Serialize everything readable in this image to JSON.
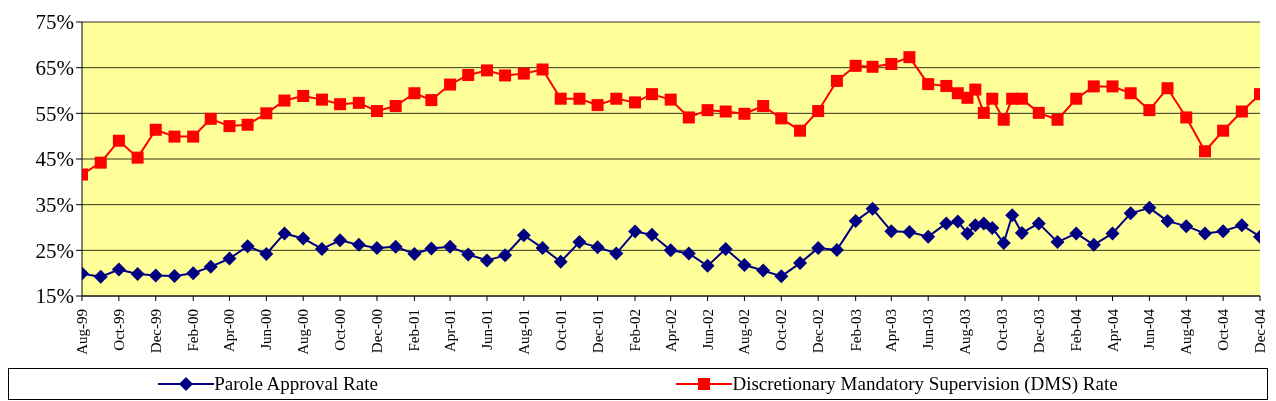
{
  "chart_data": {
    "type": "line",
    "x": [
      "1999-08",
      "1999-09",
      "1999-10",
      "1999-11",
      "1999-12",
      "2000-01",
      "2000-02",
      "2000-03",
      "2000-04",
      "2000-05",
      "2000-06",
      "2000-07",
      "2000-08",
      "2000-09",
      "2000-10",
      "2000-11",
      "2000-12",
      "2001-01",
      "2001-02",
      "2001-03",
      "2001-04",
      "2001-05",
      "2001-06",
      "2001-07",
      "2001-08",
      "2001-09",
      "2001-10",
      "2001-11",
      "2001-12",
      "2002-01",
      "2002-02",
      "2002-03",
      "2002-04",
      "2002-05",
      "2002-06",
      "2002-07",
      "2002-08",
      "2002-09",
      "2002-10",
      "2002-11",
      "2002-12",
      "2003-01",
      "2003-02",
      "2003-03",
      "2003-04",
      "2003-05",
      "2003-06",
      "2003-07",
      "2003-07-20",
      "2003-08-05",
      "2003-08-18",
      "2003-09-01",
      "2003-09-15",
      "2003-10-04",
      "2003-10-18",
      "2003-11-03",
      "2003-12",
      "2004-01",
      "2004-02",
      "2004-03",
      "2004-04",
      "2004-05",
      "2004-06",
      "2004-07",
      "2004-08",
      "2004-09",
      "2004-10",
      "2004-11",
      "2004-12"
    ],
    "series": [
      {
        "name": "Parole Approval Rate",
        "color": "#000080",
        "marker": "diamond",
        "values": [
          19.9,
          19.2,
          20.8,
          19.8,
          19.5,
          19.4,
          20.0,
          21.4,
          23.2,
          25.9,
          24.2,
          28.7,
          27.6,
          25.3,
          27.2,
          26.2,
          25.5,
          25.8,
          24.2,
          25.4,
          25.8,
          24.1,
          22.8,
          23.9,
          28.3,
          25.5,
          22.5,
          26.8,
          25.7,
          24.3,
          29.1,
          28.4,
          25.0,
          24.3,
          21.6,
          25.3,
          21.8,
          20.6,
          19.3,
          22.2,
          25.5,
          25.1,
          31.4,
          34.1,
          29.2,
          29.0,
          28.0,
          30.9,
          31.3,
          28.7,
          30.5,
          30.9,
          29.9,
          26.6,
          32.7,
          28.8,
          30.9,
          26.8,
          28.7,
          26.2,
          28.7,
          33.1,
          34.3,
          31.4,
          30.3,
          28.7,
          29.2,
          30.5,
          28.0
        ]
      },
      {
        "name": "Discretionary Mandatory Supervision (DMS) Rate",
        "color": "#ff0000",
        "marker": "square",
        "values": [
          41.6,
          44.2,
          49.0,
          45.3,
          51.4,
          49.9,
          49.9,
          53.8,
          52.2,
          52.5,
          55.0,
          57.8,
          58.8,
          58.0,
          57.0,
          57.3,
          55.5,
          56.6,
          59.4,
          57.9,
          61.3,
          63.4,
          64.4,
          63.3,
          63.7,
          64.6,
          58.2,
          58.2,
          56.8,
          58.2,
          57.4,
          59.2,
          58.0,
          54.1,
          55.7,
          55.4,
          54.9,
          56.6,
          53.9,
          51.2,
          55.5,
          62.1,
          65.4,
          65.2,
          65.8,
          67.3,
          61.4,
          61.0,
          59.4,
          58.4,
          60.2,
          55.1,
          58.2,
          53.6,
          58.2,
          58.2,
          55.1,
          53.6,
          58.2,
          60.9,
          60.9,
          59.4,
          55.7,
          60.5,
          54.1,
          46.7,
          51.2,
          55.4,
          59.2
        ]
      }
    ],
    "xlim": [
      "1999-08",
      "2004-12"
    ],
    "xticks": [
      {
        "value": "1999-08",
        "label": "Aug-99"
      },
      {
        "value": "1999-10",
        "label": "Oct-99"
      },
      {
        "value": "1999-12",
        "label": "Dec-99"
      },
      {
        "value": "2000-02",
        "label": "Feb-00"
      },
      {
        "value": "2000-04",
        "label": "Apr-00"
      },
      {
        "value": "2000-06",
        "label": "Jun-00"
      },
      {
        "value": "2000-08",
        "label": "Aug-00"
      },
      {
        "value": "2000-10",
        "label": "Oct-00"
      },
      {
        "value": "2000-12",
        "label": "Dec-00"
      },
      {
        "value": "2001-02",
        "label": "Feb-01"
      },
      {
        "value": "2001-04",
        "label": "Apr-01"
      },
      {
        "value": "2001-06",
        "label": "Jun-01"
      },
      {
        "value": "2001-08",
        "label": "Aug-01"
      },
      {
        "value": "2001-10",
        "label": "Oct-01"
      },
      {
        "value": "2001-12",
        "label": "Dec-01"
      },
      {
        "value": "2002-02",
        "label": "Feb-02"
      },
      {
        "value": "2002-04",
        "label": "Apr-02"
      },
      {
        "value": "2002-06",
        "label": "Jun-02"
      },
      {
        "value": "2002-08",
        "label": "Aug-02"
      },
      {
        "value": "2002-10",
        "label": "Oct-02"
      },
      {
        "value": "2002-12",
        "label": "Dec-02"
      },
      {
        "value": "2003-02",
        "label": "Feb-03"
      },
      {
        "value": "2003-04",
        "label": "Apr-03"
      },
      {
        "value": "2003-06",
        "label": "Jun-03"
      },
      {
        "value": "2003-08",
        "label": "Aug-03"
      },
      {
        "value": "2003-10",
        "label": "Oct-03"
      },
      {
        "value": "2003-12",
        "label": "Dec-03"
      },
      {
        "value": "2004-02",
        "label": "Feb-04"
      },
      {
        "value": "2004-04",
        "label": "Apr-04"
      },
      {
        "value": "2004-06",
        "label": "Jun-04"
      },
      {
        "value": "2004-08",
        "label": "Aug-04"
      },
      {
        "value": "2004-10",
        "label": "Oct-04"
      },
      {
        "value": "2004-12",
        "label": "Dec-04"
      }
    ],
    "ylim": [
      15,
      75
    ],
    "yticks": [
      {
        "value": 15,
        "label": "15%"
      },
      {
        "value": 25,
        "label": "25%"
      },
      {
        "value": 35,
        "label": "35%"
      },
      {
        "value": 45,
        "label": "45%"
      },
      {
        "value": 55,
        "label": "55%"
      },
      {
        "value": 65,
        "label": "65%"
      },
      {
        "value": 75,
        "label": "75%"
      }
    ],
    "grid": "y",
    "legend": "bottom",
    "line_style": "solid"
  }
}
